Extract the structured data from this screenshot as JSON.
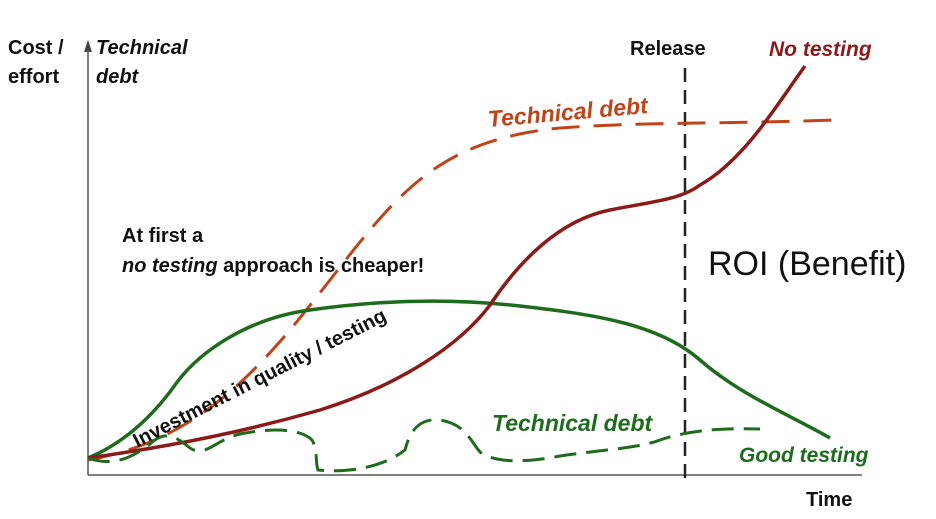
{
  "axes": {
    "y_label_line1": "Cost /",
    "y_label_line2": "effort",
    "y_label_alt_line1": "Technical",
    "y_label_alt_line2": "debt",
    "x_label": "Time"
  },
  "release_label": "Release",
  "curves": {
    "no_testing": {
      "label": "No testing",
      "color": "#8b1a1a"
    },
    "good_testing": {
      "label": "Good testing",
      "color": "#1e6b1e"
    },
    "technical_debt_no_testing": {
      "label": "Technical debt",
      "color": "#c0441a"
    },
    "technical_debt_good_testing": {
      "label": "Technical debt",
      "color": "#1e6b1e"
    },
    "investment": {
      "label": "Investment in quality / testing",
      "color": "#1e6b1e"
    }
  },
  "annotation": {
    "line1": "At first a",
    "line2_emph": "no testing",
    "line2_rest": " approach is cheaper!"
  },
  "roi_label": "ROI (Benefit)"
}
